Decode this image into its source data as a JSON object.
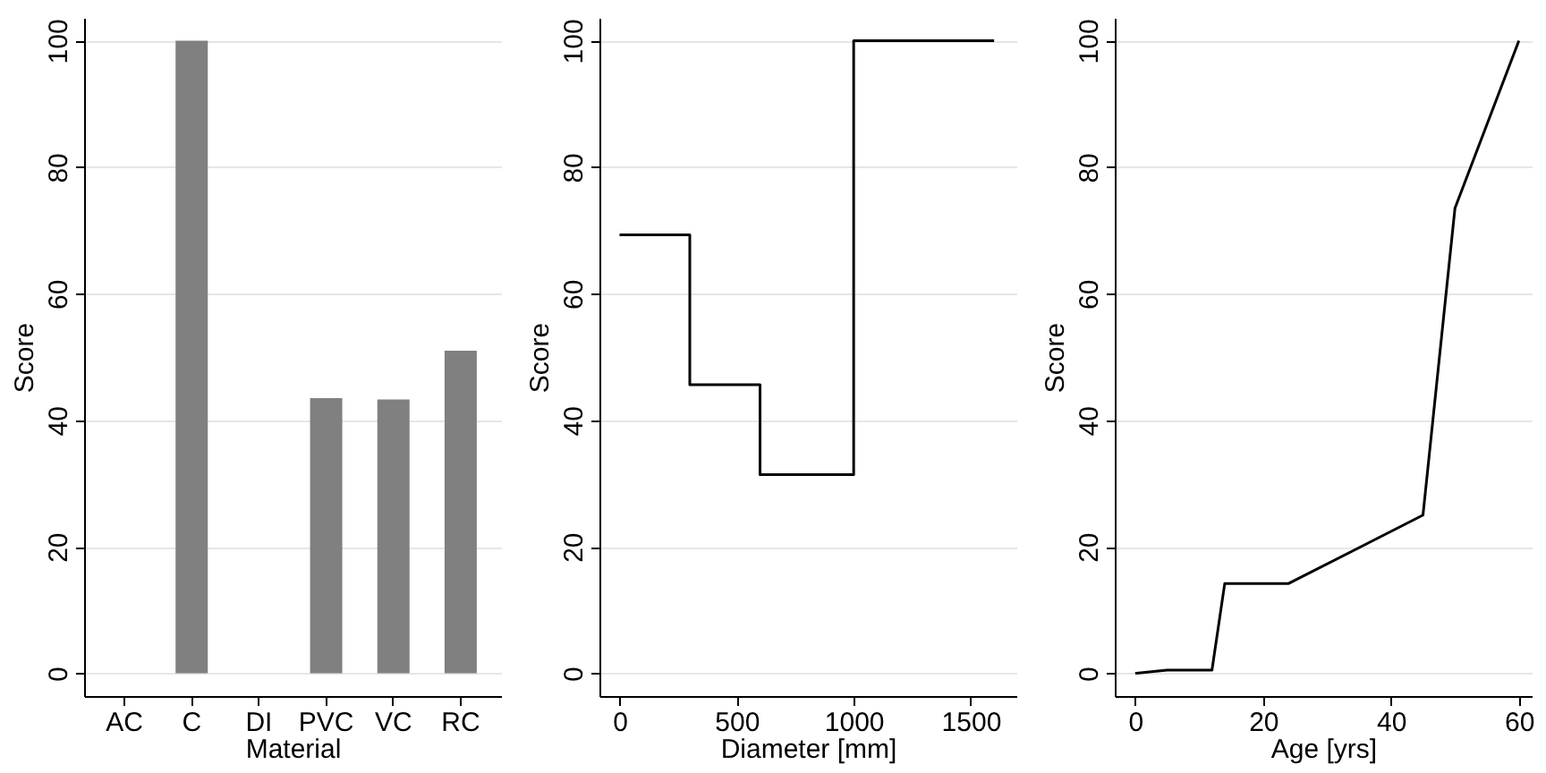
{
  "chart_data": [
    {
      "type": "bar",
      "xlabel": "Material",
      "ylabel": "Score",
      "categories": [
        "AC",
        "C",
        "DI",
        "PVC",
        "VC",
        "RC"
      ],
      "values": [
        0,
        100,
        0,
        43.5,
        43.3,
        51
      ],
      "color": "#808080",
      "ylim": [
        -3.6,
        103.6
      ],
      "yticks": [
        0,
        20,
        40,
        60,
        80,
        100
      ],
      "grid": "y"
    },
    {
      "type": "step",
      "xlabel": "Diameter [mm]",
      "ylabel": "Score",
      "x": [
        0,
        300,
        600,
        1000,
        1600
      ],
      "values": [
        69.3,
        45.6,
        31.4,
        100,
        100
      ],
      "color": "#000000",
      "xlim": [
        -86,
        1695
      ],
      "xticks": [
        0,
        500,
        1000,
        1500
      ],
      "ylim": [
        -3.6,
        103.6
      ],
      "yticks": [
        0,
        20,
        40,
        60,
        80,
        100
      ],
      "grid": "y"
    },
    {
      "type": "line",
      "xlabel": "Age [yrs]",
      "ylabel": "Score",
      "x": [
        0,
        5,
        12,
        14,
        24,
        45,
        50,
        60
      ],
      "values": [
        0,
        0.5,
        0.5,
        14.2,
        14.2,
        25,
        73.5,
        100
      ],
      "color": "#000000",
      "xlim": [
        -3.2,
        62
      ],
      "xticks": [
        0,
        20,
        40,
        60
      ],
      "ylim": [
        -3.6,
        103.6
      ],
      "yticks": [
        0,
        20,
        40,
        60,
        80,
        100
      ],
      "grid": "y"
    }
  ]
}
